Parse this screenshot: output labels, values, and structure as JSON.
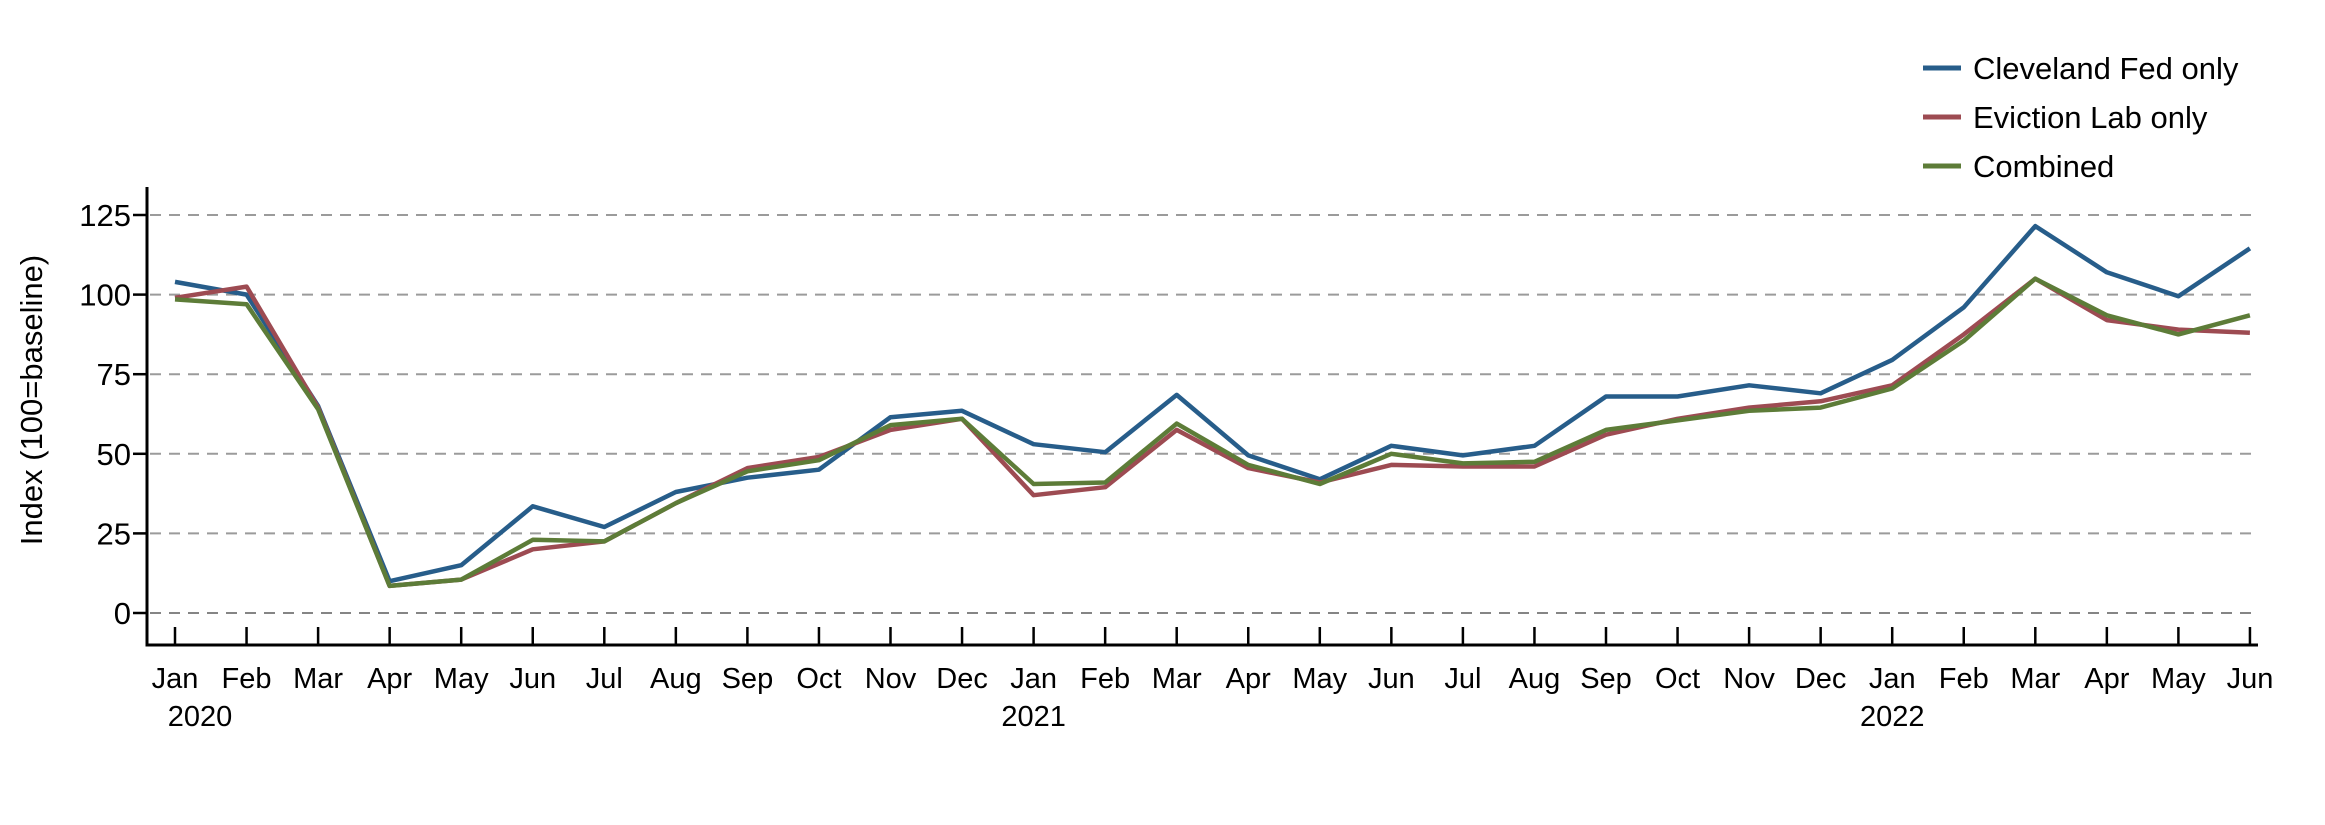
{
  "figure": {
    "background": "#ffffff",
    "axis_color": "#000000",
    "gridline_color": "#9b9b9b"
  },
  "chart_data": {
    "type": "line",
    "title": "",
    "xlabel": "",
    "ylabel": "Index (100=baseline)",
    "yticks": [
      0,
      25,
      50,
      75,
      100,
      125
    ],
    "ylim": [
      0,
      132
    ],
    "grid": "horizontal-dashed",
    "legend_position": "top-right",
    "month_labels": [
      "Jan",
      "Feb",
      "Mar",
      "Apr",
      "May",
      "Jun",
      "Jul",
      "Aug",
      "Sep",
      "Oct",
      "Nov",
      "Dec",
      "Jan",
      "Feb",
      "Mar",
      "Apr",
      "May",
      "Jun",
      "Jul",
      "Aug",
      "Sep",
      "Oct",
      "Nov",
      "Dec",
      "Jan",
      "Feb",
      "Mar",
      "Apr",
      "May",
      "Jun"
    ],
    "year_labels": [
      {
        "month_index": 0,
        "label": "2020"
      },
      {
        "month_index": 12,
        "label": "2021"
      },
      {
        "month_index": 24,
        "label": "2022"
      }
    ],
    "series": [
      {
        "name": "Cleveland Fed only",
        "color": "#275d8a",
        "values": [
          104,
          100,
          65,
          10,
          15,
          33.5,
          27,
          38,
          42.5,
          45,
          61.5,
          63.5,
          53,
          50.5,
          68.5,
          49.5,
          42,
          52.5,
          49.5,
          52.5,
          68,
          68,
          71.5,
          69,
          79.5,
          96,
          121.5,
          107,
          99.5,
          114.5
        ]
      },
      {
        "name": "Eviction Lab only",
        "color": "#9d4b52",
        "values": [
          99,
          102.5,
          64.5,
          8.5,
          10.5,
          20,
          22.5,
          34.5,
          45.5,
          49,
          57.5,
          61,
          37,
          39.5,
          57.5,
          45.5,
          41,
          46.5,
          46,
          46,
          56,
          61,
          64.5,
          66.5,
          71.5,
          87.5,
          105,
          92,
          89,
          88
        ]
      },
      {
        "name": "Combined",
        "color": "#5d7c38",
        "values": [
          98.5,
          97,
          64,
          8.5,
          10.5,
          23,
          22.5,
          34.5,
          44.5,
          48,
          59,
          61,
          40.5,
          41,
          59.5,
          46.5,
          40.5,
          50,
          47,
          47.5,
          57.5,
          60.5,
          63.5,
          64.5,
          70.5,
          85.5,
          105,
          93.5,
          87.5,
          93.5
        ]
      }
    ]
  }
}
